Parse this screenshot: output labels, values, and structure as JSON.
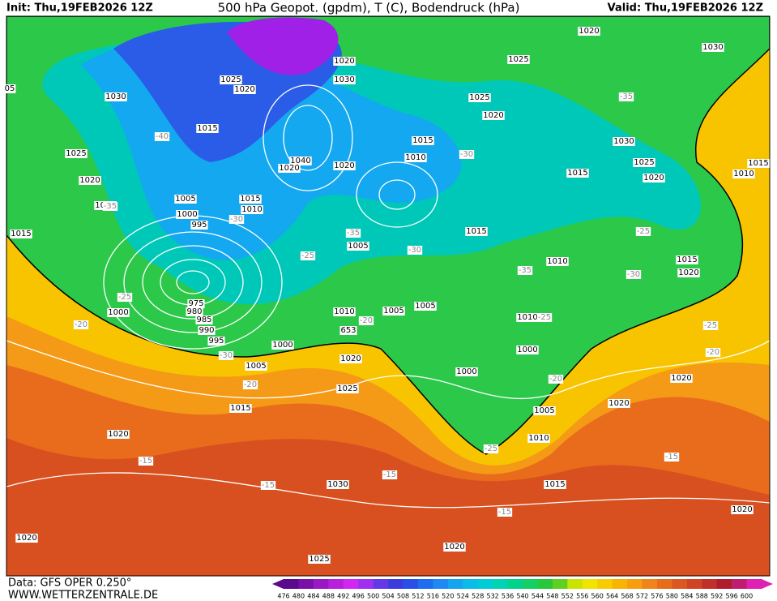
{
  "header": {
    "init": "Init: Thu,19FEB2026 12Z",
    "title": "500 hPa Geopot. (gpdm), T (C), Bodendruck (hPa)",
    "valid": "Valid: Thu,19FEB2026 12Z"
  },
  "footer": {
    "data": "Data: GFS OPER 0.250°",
    "site": "WWW.WETTERZENTRALE.DE"
  },
  "colorbar": {
    "labels": [
      "476",
      "480",
      "484",
      "488",
      "492",
      "496",
      "500",
      "504",
      "508",
      "512",
      "516",
      "520",
      "524",
      "528",
      "532",
      "536",
      "540",
      "544",
      "548",
      "552",
      "556",
      "560",
      "564",
      "568",
      "572",
      "576",
      "580",
      "584",
      "588",
      "592",
      "596",
      "600"
    ],
    "colors": [
      "#5a0a8c",
      "#7a10a8",
      "#9a18c4",
      "#b820dc",
      "#d028f0",
      "#a030f0",
      "#6438e8",
      "#3c3cdc",
      "#2850e8",
      "#1e6cf0",
      "#1e88f4",
      "#14a4f0",
      "#0abce8",
      "#00ccd8",
      "#00d4b4",
      "#00d48c",
      "#14d064",
      "#28c83c",
      "#60d020",
      "#c8e400",
      "#f0e400",
      "#f8cc00",
      "#f8b400",
      "#f89c10",
      "#f08418",
      "#e86c1c",
      "#dc5820",
      "#d04424",
      "#c03028",
      "#b01c2c",
      "#c01c70",
      "#e020b0"
    ]
  },
  "map": {
    "isobars": [
      "1020",
      "1030",
      "1025",
      "1020",
      "1025",
      "1020",
      "1030",
      "1030",
      "1025",
      "1020",
      "1015",
      "1030",
      "1015",
      "1025",
      "1010",
      "1040",
      "1020",
      "1020",
      "1025",
      "1015",
      "1020",
      "1010",
      "1015",
      "1020",
      "1005",
      "1015",
      "1010",
      "1010",
      "1000",
      "995",
      "1015",
      "1015",
      "1005",
      "1010",
      "1015",
      "1020",
      "975",
      "980",
      "985",
      "990",
      "995",
      "1000",
      "1010",
      "1005",
      "1005",
      "1010",
      "1000",
      "1000",
      "1000",
      "1020",
      "1005",
      "1020",
      "1025",
      "1015",
      "1020",
      "1005",
      "1010",
      "1020",
      "1030",
      "1015",
      "1020",
      "1020",
      "1020",
      "1025",
      "05",
      "653"
    ],
    "temperatures": [
      "-35",
      "-40",
      "-30",
      "-35",
      "-30",
      "-35",
      "-25",
      "-30",
      "-25",
      "-35",
      "-30",
      "-25",
      "-20",
      "-20",
      "-25",
      "-25",
      "-20",
      "-30",
      "-20",
      "-20",
      "-25",
      "-15",
      "-15",
      "-15",
      "-15",
      "-15"
    ]
  }
}
